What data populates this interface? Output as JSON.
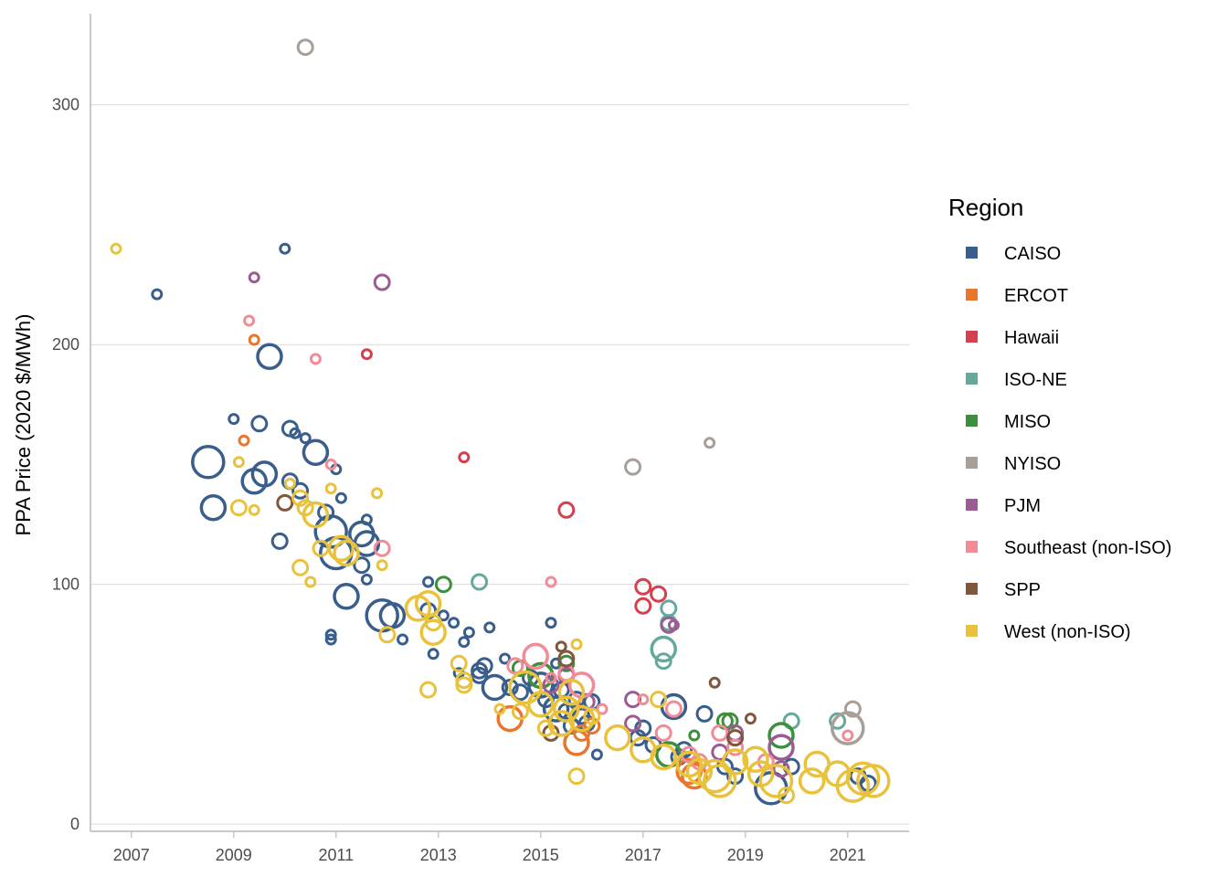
{
  "chart_data": {
    "type": "scatter",
    "title": "",
    "xlabel": "",
    "ylabel": "PPA Price (2020 $/MWh)",
    "xlim": [
      2006.2,
      2022.2
    ],
    "ylim": [
      -3,
      338
    ],
    "x_ticks": [
      "2007",
      "2009",
      "2011",
      "2013",
      "2015",
      "2017",
      "2019",
      "2021"
    ],
    "y_ticks": [
      "0",
      "100",
      "200",
      "300"
    ],
    "grid": "horizontal",
    "legend": {
      "title": "Region",
      "placement": "right"
    },
    "series": [
      {
        "name": "CAISO",
        "color": "#3a5e8c",
        "points": [
          [
            2007.5,
            221,
            1
          ],
          [
            2008.5,
            151,
            4
          ],
          [
            2008.6,
            132,
            3
          ],
          [
            2009.0,
            169,
            1
          ],
          [
            2009.5,
            167,
            2
          ],
          [
            2009.7,
            195,
            3
          ],
          [
            2009.4,
            143,
            3
          ],
          [
            2009.6,
            146,
            3
          ],
          [
            2009.9,
            118,
            2
          ],
          [
            2010.0,
            240,
            1
          ],
          [
            2010.1,
            165,
            2
          ],
          [
            2010.2,
            163,
            1
          ],
          [
            2010.1,
            143,
            2
          ],
          [
            2010.3,
            139,
            2
          ],
          [
            2010.4,
            161,
            1
          ],
          [
            2010.6,
            155,
            3
          ],
          [
            2010.8,
            130,
            2
          ],
          [
            2010.9,
            122,
            4
          ],
          [
            2010.9,
            79,
            1
          ],
          [
            2010.9,
            77,
            1
          ],
          [
            2011.0,
            148,
            1
          ],
          [
            2011.1,
            136,
            1
          ],
          [
            2011.0,
            113,
            4
          ],
          [
            2011.2,
            95,
            3
          ],
          [
            2011.5,
            121,
            3
          ],
          [
            2011.6,
            117,
            3
          ],
          [
            2011.5,
            108,
            2
          ],
          [
            2011.6,
            102,
            1
          ],
          [
            2011.6,
            127,
            1
          ],
          [
            2011.9,
            87,
            4
          ],
          [
            2012.1,
            87,
            3
          ],
          [
            2012.3,
            77,
            1
          ],
          [
            2012.8,
            101,
            1
          ],
          [
            2012.8,
            89,
            2
          ],
          [
            2012.9,
            71,
            1
          ],
          [
            2013.1,
            87,
            1
          ],
          [
            2013.3,
            84,
            1
          ],
          [
            2013.4,
            63,
            1
          ],
          [
            2013.5,
            76,
            1
          ],
          [
            2013.6,
            80,
            1
          ],
          [
            2013.8,
            62,
            2
          ],
          [
            2013.8,
            64,
            2
          ],
          [
            2013.9,
            66,
            2
          ],
          [
            2014.0,
            82,
            1
          ],
          [
            2014.1,
            57,
            3
          ],
          [
            2014.3,
            69,
            1
          ],
          [
            2014.4,
            57,
            2
          ],
          [
            2014.6,
            55,
            2
          ],
          [
            2014.8,
            61,
            2
          ],
          [
            2015.0,
            58,
            3
          ],
          [
            2015.1,
            52,
            2
          ],
          [
            2015.2,
            84,
            1
          ],
          [
            2015.3,
            67,
            1
          ],
          [
            2015.3,
            48,
            3
          ],
          [
            2015.4,
            56,
            2
          ],
          [
            2015.5,
            47,
            2
          ],
          [
            2015.6,
            41,
            2
          ],
          [
            2015.7,
            52,
            2
          ],
          [
            2015.8,
            45,
            2
          ],
          [
            2015.9,
            42,
            2
          ],
          [
            2016.0,
            51,
            2
          ],
          [
            2016.1,
            29,
            1
          ],
          [
            2016.9,
            36,
            2
          ],
          [
            2017.0,
            40,
            2
          ],
          [
            2017.2,
            33,
            2
          ],
          [
            2017.6,
            49,
            3
          ],
          [
            2017.7,
            28,
            2
          ],
          [
            2017.8,
            31,
            2
          ],
          [
            2018.2,
            46,
            2
          ],
          [
            2018.6,
            24,
            2
          ],
          [
            2018.8,
            20,
            2
          ],
          [
            2019.5,
            15,
            4
          ],
          [
            2019.9,
            24,
            2
          ],
          [
            2021.2,
            20,
            2
          ],
          [
            2021.4,
            17,
            2
          ]
        ]
      },
      {
        "name": "ERCOT",
        "color": "#e8762c",
        "points": [
          [
            2009.2,
            160,
            1
          ],
          [
            2009.4,
            202,
            1
          ],
          [
            2014.4,
            44,
            3
          ],
          [
            2015.7,
            34,
            3
          ],
          [
            2015.8,
            38,
            2
          ],
          [
            2016.0,
            41,
            2
          ],
          [
            2017.9,
            22,
            3
          ],
          [
            2018.0,
            20,
            3
          ]
        ]
      },
      {
        "name": "Hawaii",
        "color": "#d6404e",
        "points": [
          [
            2011.6,
            196,
            1
          ],
          [
            2013.5,
            153,
            1
          ],
          [
            2015.5,
            131,
            2
          ],
          [
            2017.0,
            99,
            2
          ],
          [
            2017.0,
            91,
            2
          ],
          [
            2017.3,
            96,
            2
          ]
        ]
      },
      {
        "name": "ISO-NE",
        "color": "#64a99c",
        "points": [
          [
            2013.8,
            101,
            2
          ],
          [
            2017.5,
            90,
            2
          ],
          [
            2017.5,
            84,
            2
          ],
          [
            2017.4,
            73,
            3
          ],
          [
            2017.4,
            68,
            2
          ],
          [
            2019.9,
            43,
            2
          ],
          [
            2020.8,
            43,
            2
          ]
        ]
      },
      {
        "name": "MISO",
        "color": "#3d8f3d",
        "points": [
          [
            2013.1,
            100,
            2
          ],
          [
            2014.6,
            65,
            2
          ],
          [
            2015.0,
            62,
            3
          ],
          [
            2015.5,
            67,
            2
          ],
          [
            2017.5,
            29,
            3
          ],
          [
            2018.0,
            37,
            1
          ],
          [
            2018.6,
            43,
            2
          ],
          [
            2018.7,
            43,
            2
          ],
          [
            2019.7,
            37,
            3
          ]
        ]
      },
      {
        "name": "NYISO",
        "color": "#a89f99",
        "points": [
          [
            2010.4,
            324,
            2
          ],
          [
            2016.8,
            149,
            2
          ],
          [
            2018.3,
            159,
            1
          ],
          [
            2021.0,
            40,
            4
          ],
          [
            2021.1,
            48,
            2
          ]
        ]
      },
      {
        "name": "PJM",
        "color": "#9a5c92",
        "points": [
          [
            2009.4,
            228,
            1
          ],
          [
            2011.9,
            226,
            2
          ],
          [
            2015.2,
            58,
            2
          ],
          [
            2015.5,
            62,
            2
          ],
          [
            2015.9,
            51,
            2
          ],
          [
            2016.8,
            42,
            2
          ],
          [
            2016.8,
            52,
            2
          ],
          [
            2017.5,
            83,
            2
          ],
          [
            2017.6,
            83,
            1
          ],
          [
            2018.5,
            30,
            2
          ],
          [
            2018.8,
            38,
            2
          ],
          [
            2019.7,
            23,
            2
          ],
          [
            2019.7,
            32,
            3
          ]
        ]
      },
      {
        "name": "Southeast (non-ISO)",
        "color": "#f28b98",
        "points": [
          [
            2009.3,
            210,
            1
          ],
          [
            2010.6,
            194,
            1
          ],
          [
            2010.9,
            150,
            1
          ],
          [
            2011.9,
            115,
            2
          ],
          [
            2014.5,
            66,
            2
          ],
          [
            2014.9,
            70,
            3
          ],
          [
            2015.2,
            101,
            1
          ],
          [
            2015.2,
            61,
            1
          ],
          [
            2015.5,
            63,
            2
          ],
          [
            2015.8,
            58,
            3
          ],
          [
            2016.2,
            48,
            1
          ],
          [
            2017.0,
            52,
            1
          ],
          [
            2017.4,
            38,
            2
          ],
          [
            2017.6,
            48,
            2
          ],
          [
            2017.9,
            29,
            2
          ],
          [
            2018.1,
            26,
            2
          ],
          [
            2018.5,
            38,
            2
          ],
          [
            2018.8,
            32,
            2
          ],
          [
            2019.4,
            26,
            2
          ],
          [
            2021.0,
            37,
            1
          ]
        ]
      },
      {
        "name": "SPP",
        "color": "#80573c",
        "points": [
          [
            2010.0,
            134,
            2
          ],
          [
            2015.2,
            38,
            2
          ],
          [
            2015.4,
            74,
            1
          ],
          [
            2015.5,
            69,
            2
          ],
          [
            2018.4,
            59,
            1
          ],
          [
            2018.8,
            36,
            2
          ],
          [
            2019.1,
            44,
            1
          ]
        ]
      },
      {
        "name": "West (non-ISO)",
        "color": "#e8c23c",
        "points": [
          [
            2006.7,
            240,
            1
          ],
          [
            2009.1,
            151,
            1
          ],
          [
            2009.1,
            132,
            2
          ],
          [
            2009.4,
            131,
            1
          ],
          [
            2010.1,
            142,
            1
          ],
          [
            2010.3,
            136,
            2
          ],
          [
            2010.4,
            132,
            2
          ],
          [
            2010.3,
            107,
            2
          ],
          [
            2010.5,
            101,
            1
          ],
          [
            2010.6,
            129,
            3
          ],
          [
            2010.7,
            115,
            2
          ],
          [
            2010.9,
            140,
            1
          ],
          [
            2011.1,
            115,
            3
          ],
          [
            2011.2,
            113,
            3
          ],
          [
            2011.8,
            138,
            1
          ],
          [
            2011.9,
            108,
            1
          ],
          [
            2012.0,
            79,
            2
          ],
          [
            2012.6,
            90,
            3
          ],
          [
            2012.8,
            92,
            3
          ],
          [
            2012.9,
            80,
            3
          ],
          [
            2012.9,
            84,
            2
          ],
          [
            2012.8,
            56,
            2
          ],
          [
            2013.4,
            67,
            2
          ],
          [
            2013.5,
            60,
            2
          ],
          [
            2013.5,
            58,
            2
          ],
          [
            2014.2,
            48,
            1
          ],
          [
            2014.6,
            47,
            2
          ],
          [
            2014.7,
            57,
            4
          ],
          [
            2015.0,
            50,
            3
          ],
          [
            2015.1,
            40,
            2
          ],
          [
            2015.4,
            42,
            3
          ],
          [
            2015.5,
            48,
            3
          ],
          [
            2015.6,
            55,
            3
          ],
          [
            2015.7,
            75,
            1
          ],
          [
            2015.7,
            20,
            2
          ],
          [
            2015.8,
            44,
            3
          ],
          [
            2016.0,
            45,
            2
          ],
          [
            2016.5,
            36,
            3
          ],
          [
            2017.0,
            31,
            3
          ],
          [
            2017.3,
            52,
            2
          ],
          [
            2017.4,
            28,
            3
          ],
          [
            2017.9,
            25,
            3
          ],
          [
            2018.1,
            22,
            3
          ],
          [
            2018.4,
            20,
            4
          ],
          [
            2018.5,
            18,
            4
          ],
          [
            2018.8,
            26,
            3
          ],
          [
            2019.2,
            27,
            3
          ],
          [
            2019.3,
            21,
            3
          ],
          [
            2019.6,
            18,
            4
          ],
          [
            2019.8,
            12,
            2
          ],
          [
            2020.3,
            18,
            3
          ],
          [
            2020.4,
            25,
            3
          ],
          [
            2020.8,
            21,
            3
          ],
          [
            2021.1,
            16,
            4
          ],
          [
            2021.3,
            19,
            4
          ],
          [
            2021.5,
            18,
            4
          ]
        ]
      }
    ]
  }
}
